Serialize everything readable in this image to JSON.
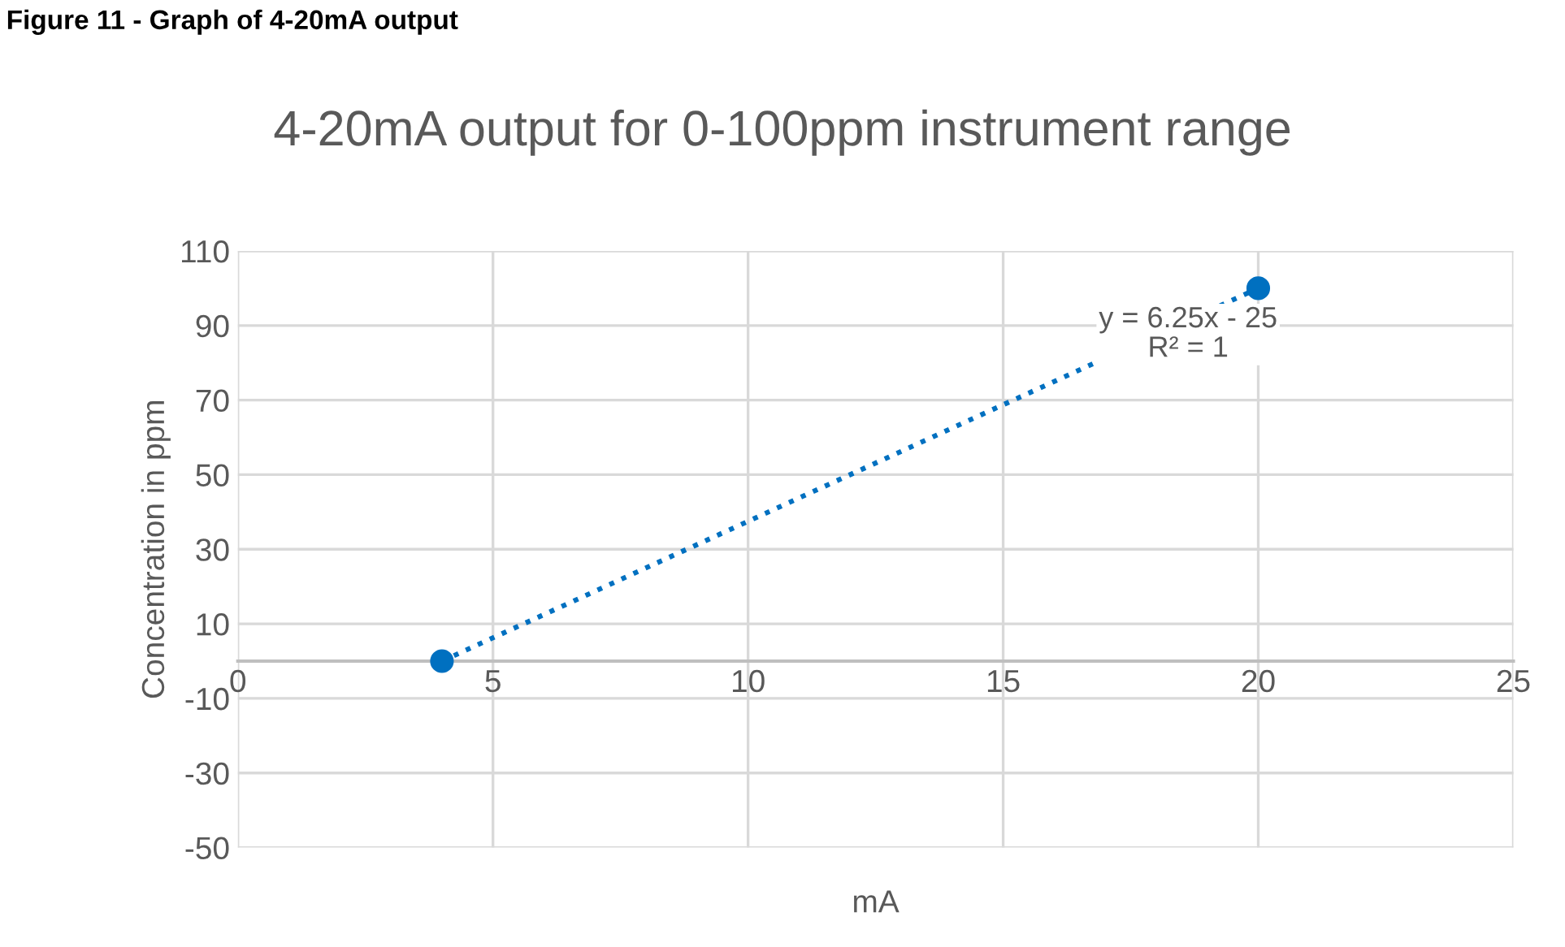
{
  "chart_data": {
    "type": "scatter",
    "title": "4-20mA output for 0-100ppm instrument range",
    "xlabel": "mA",
    "ylabel": "Concentration in ppm",
    "x": [
      4,
      20
    ],
    "series": [
      {
        "color": "#0070c0",
        "values": [
          0,
          100
        ],
        "marker": "circle"
      },
      {
        "type": "line",
        "color": "#0070c0",
        "x": [
          4,
          20
        ],
        "values": [
          0,
          100
        ],
        "line_style": "dotted"
      }
    ],
    "xlim": [
      0,
      25
    ],
    "xticks": [
      0,
      5,
      10,
      15,
      20,
      25
    ],
    "ylim": [
      -50,
      110
    ],
    "yticks": [
      -50,
      -30,
      -10,
      10,
      30,
      50,
      70,
      90,
      110
    ],
    "grid": true,
    "annotations": [
      "Figure 11 - Graph of 4-20mA output",
      "y = 6.25x - 25\nR² = 1"
    ]
  }
}
